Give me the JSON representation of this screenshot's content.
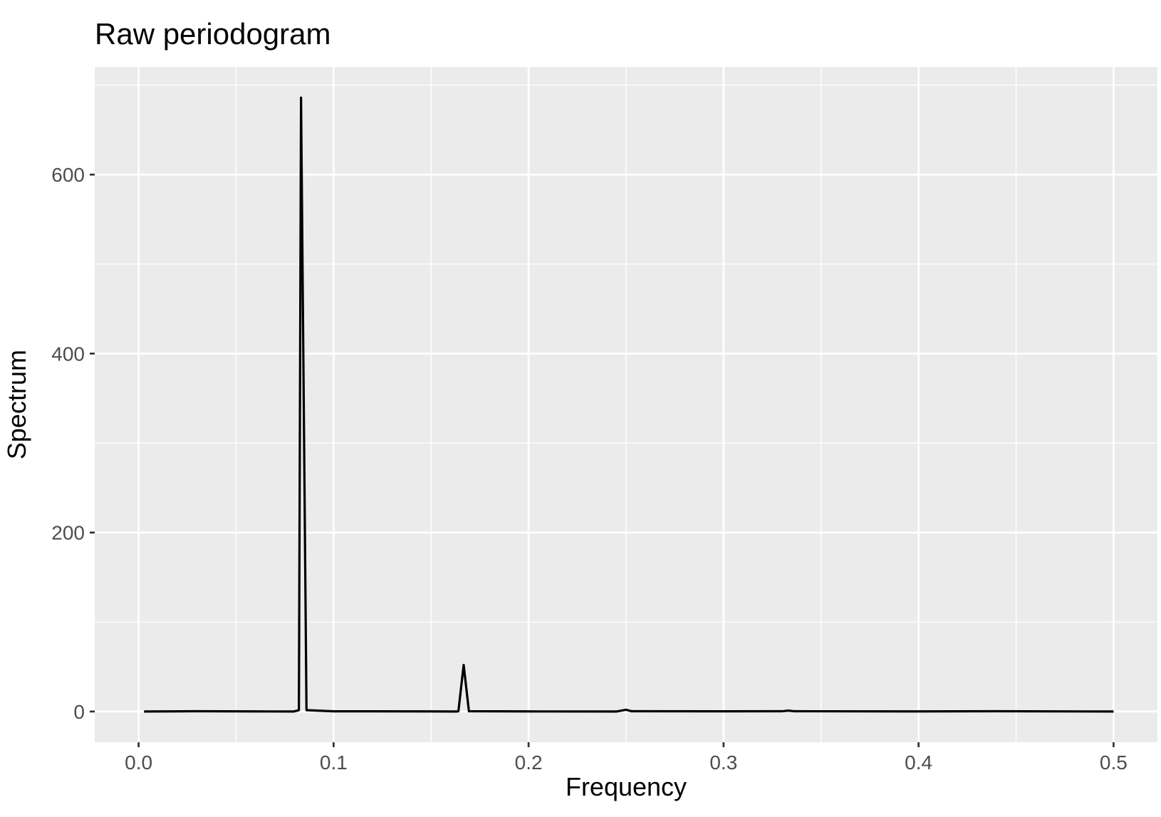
{
  "chart_data": {
    "type": "line",
    "title": "Raw periodogram",
    "xlabel": "Frequency",
    "ylabel": "Spectrum",
    "xlim": [
      -0.0225,
      0.5225
    ],
    "ylim": [
      -34.3,
      720.3
    ],
    "x_ticks": [
      0.0,
      0.1,
      0.2,
      0.3,
      0.4,
      0.5
    ],
    "x_tick_labels": [
      "0.0",
      "0.1",
      "0.2",
      "0.3",
      "0.4",
      "0.5"
    ],
    "y_ticks": [
      0,
      200,
      400,
      600
    ],
    "y_tick_labels": [
      "0",
      "200",
      "400",
      "600"
    ],
    "x_minor_gridlines": [
      0.05,
      0.15,
      0.25,
      0.35,
      0.45
    ],
    "y_minor_gridlines": [
      100,
      300,
      500,
      700
    ],
    "grid": true,
    "legend": "none",
    "colors": {
      "panel_background": "#ebebeb",
      "gridline": "#ffffff",
      "line": "#000000",
      "tick_label": "#4d4d4d"
    },
    "series": [
      {
        "x": [
          0.00278,
          0.03,
          0.06,
          0.0795,
          0.0822,
          0.0833,
          0.0861,
          0.1,
          0.12,
          0.15,
          0.163,
          0.164,
          0.1667,
          0.1694,
          0.2,
          0.245,
          0.25,
          0.2528,
          0.3,
          0.33,
          0.3333,
          0.3361,
          0.4,
          0.44,
          0.5
        ],
        "y": [
          0,
          0.3,
          0.1,
          0,
          1.5,
          686,
          1.5,
          0.2,
          0.2,
          0.1,
          0,
          0.3,
          52,
          0.3,
          0.1,
          0,
          2,
          0.3,
          0.2,
          0.3,
          1,
          0.3,
          0.1,
          0.3,
          0
        ]
      }
    ]
  }
}
